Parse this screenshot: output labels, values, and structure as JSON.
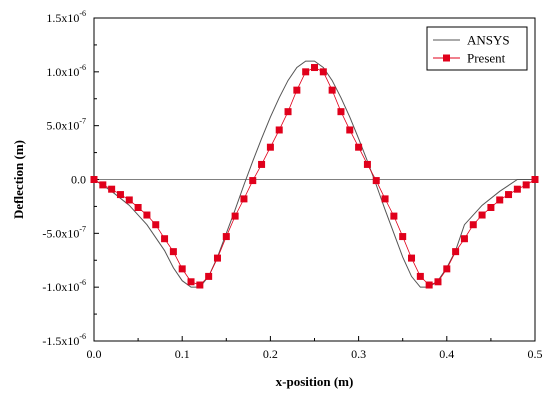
{
  "chart_data": {
    "type": "line",
    "title": "",
    "xlabel": "x-position (m)",
    "ylabel": "Deflection (m)",
    "xlim": [
      0.0,
      0.5
    ],
    "ylim": [
      -1.5e-06,
      1.5e-06
    ],
    "x_ticks": [
      0.0,
      0.1,
      0.2,
      0.3,
      0.4,
      0.5
    ],
    "x_tick_labels": [
      "0.0",
      "0.1",
      "0.2",
      "0.3",
      "0.4",
      "0.5"
    ],
    "y_ticks": [
      1.5e-06,
      1e-06,
      5e-07,
      0.0,
      -5e-07,
      -1e-06,
      -1.5e-06
    ],
    "y_tick_labels": [
      {
        "mantissa": "1.5x10",
        "exp": "-6"
      },
      {
        "mantissa": "1.0x10",
        "exp": "-6"
      },
      {
        "mantissa": "5.0x10",
        "exp": "-7"
      },
      {
        "mantissa": "0.0",
        "exp": ""
      },
      {
        "mantissa": "-5.0x10",
        "exp": "-7"
      },
      {
        "mantissa": "-1.0x10",
        "exp": "-6"
      },
      {
        "mantissa": "-1.5x10",
        "exp": "-6"
      }
    ],
    "grid": false,
    "legend_position": "top-right",
    "series": [
      {
        "name": "ANSYS",
        "color": "#555555",
        "marker": "none",
        "x": [
          0.0,
          0.02,
          0.04,
          0.06,
          0.08,
          0.09,
          0.1,
          0.11,
          0.12,
          0.13,
          0.14,
          0.15,
          0.16,
          0.17,
          0.18,
          0.19,
          0.2,
          0.21,
          0.22,
          0.23,
          0.24,
          0.25,
          0.26,
          0.27,
          0.28,
          0.29,
          0.3,
          0.31,
          0.32,
          0.33,
          0.34,
          0.35,
          0.36,
          0.37,
          0.38,
          0.39,
          0.4,
          0.41,
          0.42,
          0.44,
          0.46,
          0.48,
          0.5
        ],
        "y": [
          0.0,
          -1.1e-07,
          -2.4e-07,
          -4.2e-07,
          -6.6e-07,
          -8.2e-07,
          -9.4e-07,
          -1e-06,
          -1e-06,
          -9e-07,
          -7.2e-07,
          -5e-07,
          -2.8e-07,
          -5e-08,
          1.7e-07,
          3.8e-07,
          5.8e-07,
          7.6e-07,
          9.2e-07,
          1.04e-06,
          1.1e-06,
          1.1e-06,
          1.04e-06,
          9.2e-07,
          7.6e-07,
          5.8e-07,
          3.8e-07,
          1.7e-07,
          -5e-08,
          -2.8e-07,
          -5e-07,
          -7.2e-07,
          -9e-07,
          -1e-06,
          -1e-06,
          -9.4e-07,
          -8.2e-07,
          -6.6e-07,
          -4.2e-07,
          -2.4e-07,
          -1.1e-07,
          0.0,
          0.0
        ]
      },
      {
        "name": "Present",
        "color": "#e0001b",
        "marker": "square",
        "x": [
          0.0,
          0.01,
          0.02,
          0.03,
          0.04,
          0.05,
          0.06,
          0.07,
          0.08,
          0.09,
          0.1,
          0.11,
          0.12,
          0.13,
          0.14,
          0.15,
          0.16,
          0.17,
          0.18,
          0.19,
          0.2,
          0.21,
          0.22,
          0.23,
          0.24,
          0.25,
          0.26,
          0.27,
          0.28,
          0.29,
          0.3,
          0.31,
          0.32,
          0.33,
          0.34,
          0.35,
          0.36,
          0.37,
          0.38,
          0.39,
          0.4,
          0.41,
          0.42,
          0.43,
          0.44,
          0.45,
          0.46,
          0.47,
          0.48,
          0.49,
          0.5
        ],
        "y": [
          0.0,
          -5e-08,
          -9e-08,
          -1.4e-07,
          -1.9e-07,
          -2.6e-07,
          -3.3e-07,
          -4.2e-07,
          -5.5e-07,
          -6.7e-07,
          -8.3e-07,
          -9.5e-07,
          -9.8e-07,
          -9e-07,
          -7.3e-07,
          -5.3e-07,
          -3.4e-07,
          -1.8e-07,
          -1e-08,
          1.4e-07,
          3e-07,
          4.6e-07,
          6.3e-07,
          8.3e-07,
          1e-06,
          1.04e-06,
          1e-06,
          8.3e-07,
          6.3e-07,
          4.6e-07,
          3e-07,
          1.4e-07,
          -1e-08,
          -1.8e-07,
          -3.4e-07,
          -5.3e-07,
          -7.3e-07,
          -9e-07,
          -9.8e-07,
          -9.5e-07,
          -8.3e-07,
          -6.7e-07,
          -5.5e-07,
          -4.2e-07,
          -3.3e-07,
          -2.6e-07,
          -1.9e-07,
          -1.4e-07,
          -9e-08,
          -5e-08,
          0.0
        ]
      }
    ]
  }
}
